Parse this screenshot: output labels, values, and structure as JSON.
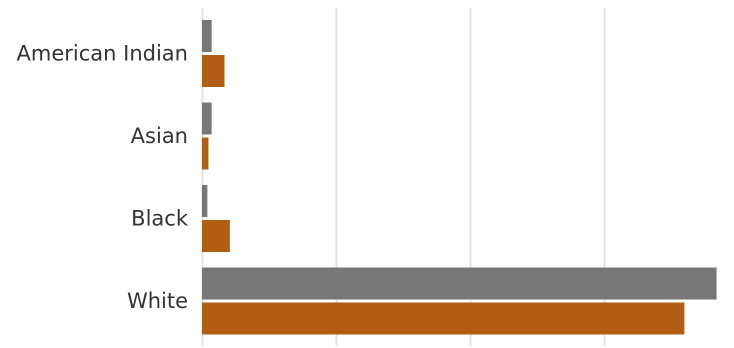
{
  "chart_data": {
    "type": "bar",
    "orientation": "horizontal",
    "title": "",
    "xlabel": "",
    "ylabel": "",
    "categories": [
      "American Indian",
      "Asian",
      "Black",
      "White"
    ],
    "series": [
      {
        "values": [
          1.8,
          1.8,
          1.0,
          96.0
        ]
      },
      {
        "values": [
          4.2,
          1.2,
          5.2,
          90.0
        ]
      }
    ],
    "colors": [
      "#777777",
      "#b35c14"
    ],
    "xlim": [
      0,
      100
    ],
    "grid": true,
    "legend": "none"
  }
}
